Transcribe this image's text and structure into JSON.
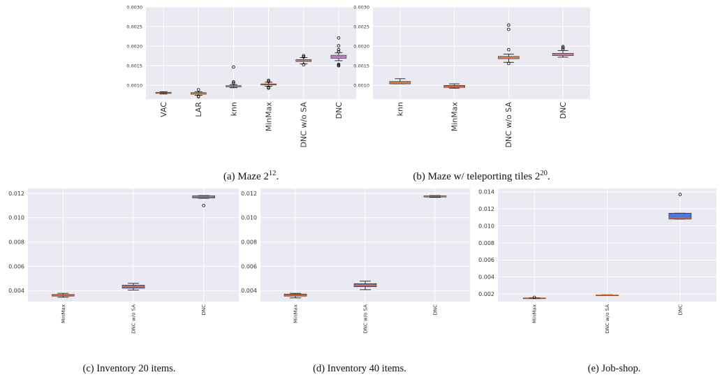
{
  "colors": {
    "panel_bg": "#EAEAF2",
    "grid": "#FFFFFF",
    "median": "#E0702A",
    "whisker": "#000000"
  },
  "chart_data": [
    {
      "type": "box",
      "caption": "(a) Maze 2^12.",
      "caption_text": "(a) Maze 2",
      "caption_exp": "12",
      "caption_tail": ".",
      "categories": [
        "VAC",
        "LAR",
        "knn",
        "MinMax",
        "DNC w/o SA",
        "DNC"
      ],
      "colors": [
        "#E07050",
        "#8FA36B",
        "#E06D9A",
        "#E0552A",
        "#8E9BD8",
        "#B98ED8"
      ],
      "yticks": [
        "0.0010",
        "0.0015",
        "0.0020",
        "0.0025",
        "0.0030"
      ],
      "ylim": [
        0.00065,
        0.003
      ],
      "boxes": [
        {
          "q1": 0.000795,
          "median": 0.00081,
          "q3": 0.000825,
          "wlo": 0.00078,
          "whi": 0.00084,
          "outliers": []
        },
        {
          "q1": 0.000775,
          "median": 0.00079,
          "q3": 0.000815,
          "wlo": 0.00075,
          "whi": 0.00084,
          "outliers": [
            0.00071,
            0.00072,
            0.00089
          ]
        },
        {
          "q1": 0.000965,
          "median": 0.00098,
          "q3": 0.000995,
          "wlo": 0.00094,
          "whi": 0.00102,
          "outliers": [
            0.00106,
            0.00109,
            0.00147
          ]
        },
        {
          "q1": 0.00101,
          "median": 0.001025,
          "q3": 0.00104,
          "wlo": 0.00098,
          "whi": 0.00108,
          "outliers": [
            0.00093,
            0.00095,
            0.0011,
            0.00113
          ]
        },
        {
          "q1": 0.00161,
          "median": 0.00163,
          "q3": 0.00166,
          "wlo": 0.00155,
          "whi": 0.00171,
          "outliers": [
            0.00153,
            0.00173,
            0.00176
          ]
        },
        {
          "q1": 0.00169,
          "median": 0.00173,
          "q3": 0.00177,
          "wlo": 0.00163,
          "whi": 0.00183,
          "outliers": [
            0.0015,
            0.00152,
            0.00154,
            0.00186,
            0.00191,
            0.00201,
            0.00221
          ]
        }
      ]
    },
    {
      "type": "box",
      "caption": "(b) Maze w/ teleporting tiles 2^20.",
      "caption_text": "(b) Maze w/ teleporting tiles 2",
      "caption_exp": "20",
      "caption_tail": ".",
      "categories": [
        "knn",
        "MinMax",
        "DNC w/o SA",
        "DNC"
      ],
      "colors": [
        "#E06D9A",
        "#E0552A",
        "#8E9BD8",
        "#B98ED8"
      ],
      "yticks": [
        "0.0010",
        "0.0015",
        "0.0020",
        "0.0025",
        "0.0030"
      ],
      "ylim": [
        0.00065,
        0.003
      ],
      "boxes": [
        {
          "q1": 0.00104,
          "median": 0.00107,
          "q3": 0.0011,
          "wlo": 0.00104,
          "whi": 0.00117,
          "outliers": []
        },
        {
          "q1": 0.00095,
          "median": 0.00098,
          "q3": 0.001,
          "wlo": 0.00093,
          "whi": 0.00104,
          "outliers": []
        },
        {
          "q1": 0.00168,
          "median": 0.00171,
          "q3": 0.00174,
          "wlo": 0.00159,
          "whi": 0.0018,
          "outliers": [
            0.00156,
            0.00191,
            0.00243,
            0.00254
          ]
        },
        {
          "q1": 0.00176,
          "median": 0.00179,
          "q3": 0.00182,
          "wlo": 0.00172,
          "whi": 0.00189,
          "outliers": [
            0.00192,
            0.00196,
            0.00199
          ]
        }
      ]
    },
    {
      "type": "box",
      "caption": "(c) Inventory 20 items.",
      "categories": [
        "MinMax",
        "DNC w/o SA",
        "DNC"
      ],
      "colors": [
        "#E0552A",
        "#6A6ED8",
        "#5B8EDB"
      ],
      "yticks": [
        "0.004",
        "0.006",
        "0.008",
        "0.010",
        "0.012"
      ],
      "ylim": [
        0.0031,
        0.0124
      ],
      "boxes": [
        {
          "q1": 0.00355,
          "median": 0.0036,
          "q3": 0.00368,
          "wlo": 0.00345,
          "whi": 0.00378,
          "outliers": []
        },
        {
          "q1": 0.0042,
          "median": 0.00432,
          "q3": 0.00445,
          "wlo": 0.00405,
          "whi": 0.0046,
          "outliers": []
        },
        {
          "q1": 0.01162,
          "median": 0.01172,
          "q3": 0.0118,
          "wlo": 0.0116,
          "whi": 0.01182,
          "outliers": [
            0.011
          ]
        }
      ]
    },
    {
      "type": "box",
      "caption": "(d) Inventory 40 items.",
      "categories": [
        "MinMax",
        "DNC w/o SA",
        "DNC"
      ],
      "colors": [
        "#E0552A",
        "#6A6ED8",
        "#5B8EDB"
      ],
      "yticks": [
        "0.004",
        "0.006",
        "0.008",
        "0.010",
        "0.012"
      ],
      "ylim": [
        0.0031,
        0.0124
      ],
      "boxes": [
        {
          "q1": 0.00355,
          "median": 0.00362,
          "q3": 0.00372,
          "wlo": 0.0034,
          "whi": 0.00378,
          "outliers": []
        },
        {
          "q1": 0.00432,
          "median": 0.00444,
          "q3": 0.00458,
          "wlo": 0.00408,
          "whi": 0.00478,
          "outliers": []
        },
        {
          "q1": 0.0117,
          "median": 0.01175,
          "q3": 0.0118,
          "wlo": 0.01167,
          "whi": 0.01182,
          "outliers": []
        }
      ]
    },
    {
      "type": "box",
      "caption": "(e) Job-shop.",
      "categories": [
        "MinMax",
        "DNC w/o SA",
        "DNC"
      ],
      "colors": [
        "#E0552A",
        "#6A6ED8",
        "#4F76E0"
      ],
      "yticks": [
        "0.002",
        "0.004",
        "0.006",
        "0.008",
        "0.010",
        "0.012",
        "0.014"
      ],
      "ylim": [
        0.0011,
        0.0144
      ],
      "boxes": [
        {
          "q1": 0.00148,
          "median": 0.00151,
          "q3": 0.00154,
          "wlo": 0.00145,
          "whi": 0.00156,
          "outliers": [
            0.0016
          ]
        },
        {
          "q1": 0.00187,
          "median": 0.00188,
          "q3": 0.0019,
          "wlo": 0.00186,
          "whi": 0.00191,
          "outliers": []
        },
        {
          "q1": 0.0108,
          "median": 0.0109,
          "q3": 0.0115,
          "wlo": 0.0108,
          "whi": 0.0115,
          "outliers": [
            0.0137
          ]
        }
      ]
    }
  ]
}
